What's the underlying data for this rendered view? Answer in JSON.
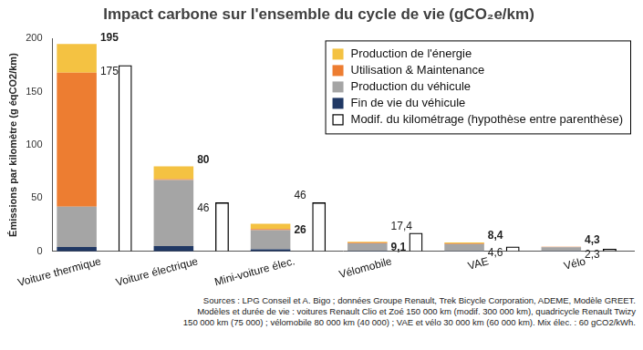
{
  "chart_data": {
    "type": "bar",
    "title": "Impact carbone sur l'ensemble du cycle de vie (gCO₂e/km)",
    "y_label": "Émissions par kilomètre (g éqCO2/km)",
    "categories": [
      "Voiture thermique",
      "Voiture électrique",
      "Mini-voiture élec.",
      "Vélomobile",
      "VAE",
      "Vélo"
    ],
    "series": [
      {
        "name": "Production de l'énergie",
        "color": "#f4c242",
        "values": [
          27,
          12,
          5,
          1,
          1,
          0
        ]
      },
      {
        "name": "Utilisation & Maintenance",
        "color": "#ed7d31",
        "values": [
          126,
          1,
          1,
          0.6,
          0.6,
          0.4
        ]
      },
      {
        "name": "Production du véhicule",
        "color": "#a5a5a5",
        "values": [
          38,
          62,
          18,
          7,
          6.5,
          3.7
        ]
      },
      {
        "name": "Fin de vie du véhicule",
        "color": "#203864",
        "values": [
          4,
          5,
          2,
          0.5,
          0.3,
          0.2
        ]
      },
      {
        "name": "Modif. du kilométrage (hypothèse entre parenthèse)",
        "color": "#000000",
        "type": "outline",
        "data_labels": true,
        "values": [
          175,
          46,
          46,
          17.4,
          4.6,
          2.3
        ],
        "value_labels": [
          "175",
          "46",
          "46",
          "17,4",
          "4,6",
          "2,3"
        ]
      }
    ],
    "totals": [
      195,
      80,
      26,
      9.1,
      8.4,
      4.3
    ],
    "total_labels": [
      "195",
      "80",
      "26",
      "9,1",
      "8,4",
      "4,3"
    ],
    "stacked": true,
    "ylim": [
      0,
      200
    ],
    "yticks": [
      0,
      50,
      100,
      150,
      200
    ],
    "grid": false,
    "legend": "upper right",
    "source": [
      "Sources : LPG Conseil et A. Bigo ; données Groupe Renault, Trek Bicycle Corporation, ADEME, Modèle GREET.",
      "Modèles et durée de vie : voitures Renault Clio et Zoé 150 000 km (modif. 300 000 km), quadricycle Renault Twizy",
      "150 000 km (75 000) ; vélomobile 80 000 km (40 000) ; VAE et vélo 30 000 km (60 000 km). Mix élec. : 60 gCO2/kWh."
    ]
  }
}
